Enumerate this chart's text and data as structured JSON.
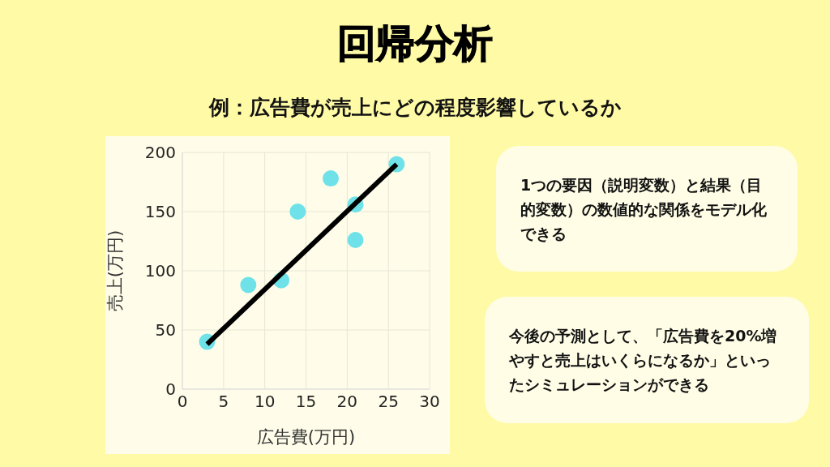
{
  "chart_data": {
    "type": "scatter",
    "title": "回帰分析",
    "subtitle": "例：広告費が売上にどの程度影響しているか",
    "xlabel": "広告費(万円)",
    "ylabel": "売上(万円)",
    "series": [
      {
        "color": "#6ee2e8",
        "marker": "circle",
        "x": [
          3,
          8,
          12,
          14,
          18,
          21,
          21,
          26
        ],
        "values": [
          40,
          88,
          92,
          150,
          178,
          156,
          126,
          190
        ]
      },
      {
        "type": "line",
        "marker": "none",
        "color": "#000000",
        "x": [
          3,
          26
        ],
        "values": [
          38,
          190
        ]
      }
    ],
    "grid": true,
    "xlim": [
      0,
      30
    ],
    "xticks": [
      0,
      5,
      10,
      15,
      20,
      25,
      30
    ],
    "ylim": [
      0,
      200
    ],
    "yticks": [
      0,
      50,
      100,
      150,
      200
    ],
    "annotations": [
      "1つの要因（説明変数）と結果（目的変数）の数値的な関係をモデル化できる",
      "今後の予測として、「広告費を20%増やすと売上はいくらになるか」といったシミュレーションができる"
    ]
  }
}
